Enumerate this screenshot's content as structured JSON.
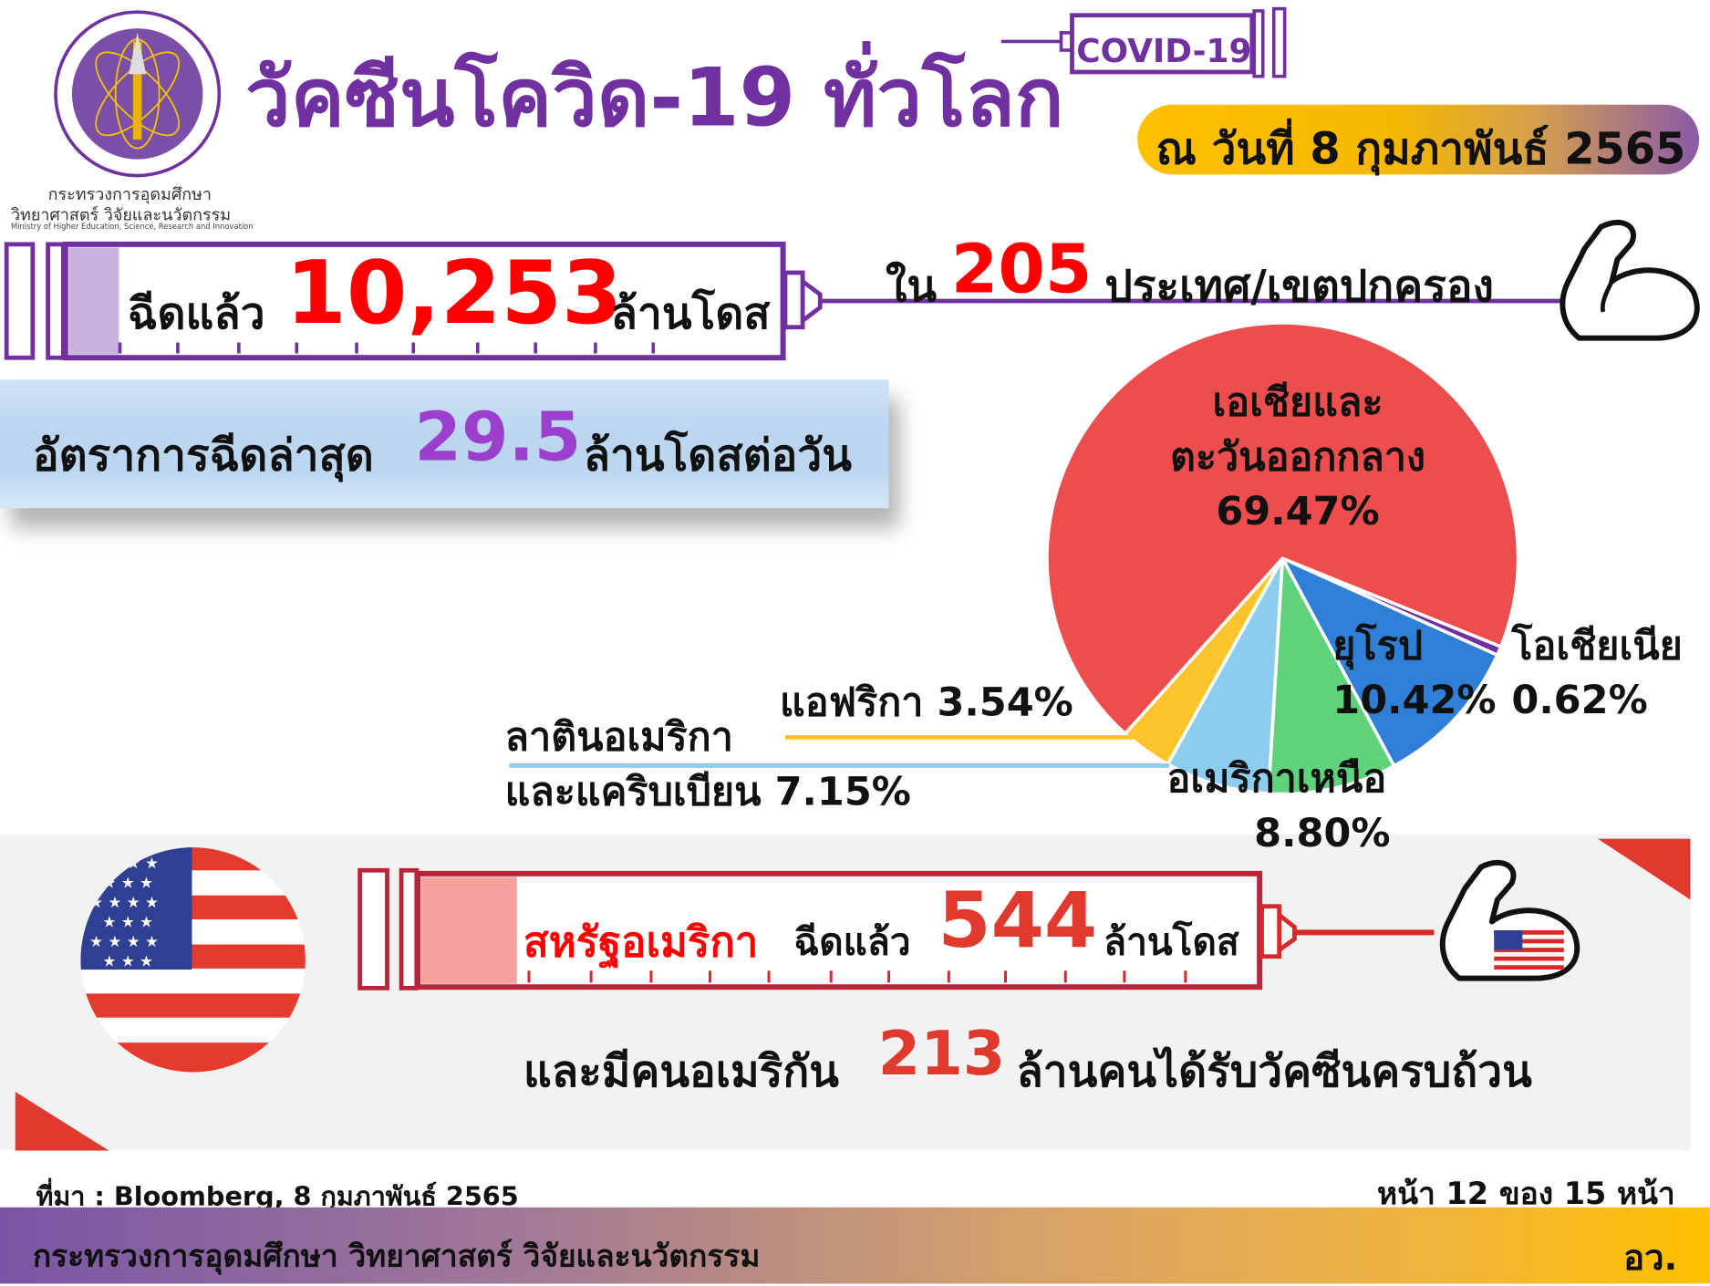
{
  "header": {
    "title": "วัคซีนโควิด-19 ทั่วโลก",
    "badge": "COVID-19",
    "date": "ณ วันที่ 8 กุมภาพันธ์ 2565",
    "logo_line1": "กระทรวงการอุดมศึกษา",
    "logo_line2": "วิทยาศาสตร์ วิจัยและนวัตกรรม",
    "logo_line3": "Ministry of Higher Education, Science, Research and Innovation"
  },
  "world": {
    "prefix": "ฉีดแล้ว",
    "doses": "10,253",
    "unit": "ล้านโดส",
    "countries_prefix": "ใน",
    "countries": "205",
    "countries_suffix": "ประเทศ/เขตปกครอง",
    "rate_prefix": "อัตราการฉีดล่าสุด",
    "rate": "29.5",
    "rate_suffix": "ล้านโดสต่อวัน"
  },
  "chart_data": {
    "type": "pie",
    "slices": [
      {
        "label": "เอเชียและ ตะวันออกกลาง",
        "line1": "เอเชียและ",
        "line2": "ตะวันออกกลาง",
        "value": 69.47,
        "display": "69.47%",
        "color": "#ee4d4d"
      },
      {
        "label": "แอฟริกา",
        "value": 3.54,
        "display": "3.54%",
        "color": "#fcc42a"
      },
      {
        "label": "ลาตินอเมริกา และแคริบเบียน",
        "line1": "ลาตินอเมริกา",
        "line2": "และแคริบเบียน",
        "value": 7.15,
        "display": "7.15%",
        "color": "#8ccdef"
      },
      {
        "label": "อเมริกาเหนือ",
        "value": 8.8,
        "display": "8.80%",
        "color": "#5fd37c"
      },
      {
        "label": "ยุโรป",
        "value": 10.42,
        "display": "10.42%",
        "color": "#2f7fd6"
      },
      {
        "label": "โอเชียเนีย",
        "value": 0.62,
        "display": "0.62%",
        "color": "#7030a0"
      }
    ]
  },
  "usa": {
    "country": "สหรัฐอเมริกา",
    "prefix": "ฉีดแล้ว",
    "doses": "544",
    "unit": "ล้านโดส",
    "people_prefix": "และมีคนอเมริกัน",
    "people": "213",
    "people_suffix": "ล้านคนได้รับวัคซีนครบถ้วน"
  },
  "footer": {
    "source": "ที่มา : Bloomberg, 8 กุมภาพันธ์ 2565",
    "page": "หน้า 12 ของ 15 หน้า",
    "ministry": "กระทรวงการอุดมศึกษา วิทยาศาสตร์ วิจัยและนวัตกรรม",
    "abbr": "อว."
  },
  "colors": {
    "purple": "#7030a0",
    "red": "#ff0000",
    "usa_red": "#e03a2e",
    "gold": "#ffc000"
  }
}
